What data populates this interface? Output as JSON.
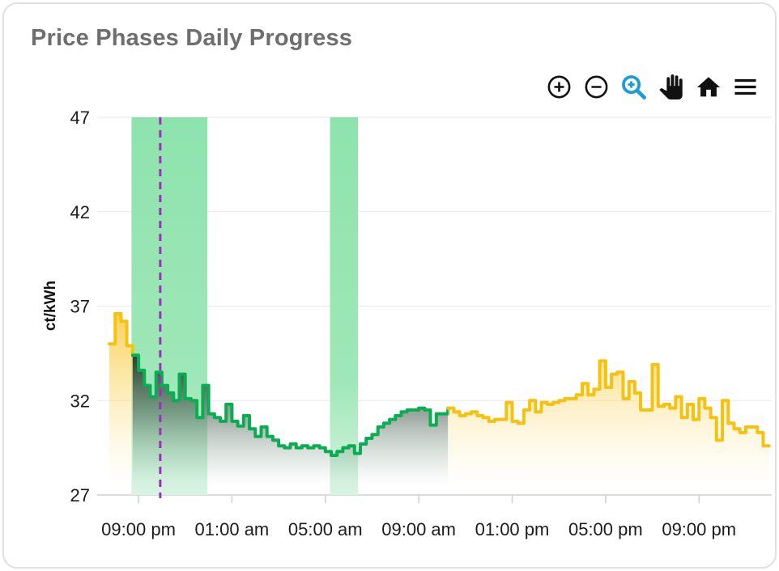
{
  "card": {
    "title": "Price Phases Daily Progress"
  },
  "toolbar": {
    "items": [
      {
        "name": "zoom-in",
        "label": "Zoom in"
      },
      {
        "name": "zoom-out",
        "label": "Zoom out"
      },
      {
        "name": "box-zoom",
        "label": "Box zoom",
        "active": true
      },
      {
        "name": "pan",
        "label": "Pan"
      },
      {
        "name": "reset-view",
        "label": "Reset view"
      },
      {
        "name": "menu",
        "label": "Menu"
      }
    ],
    "active_color": "#1A9DD9",
    "icon_color": "#111111"
  },
  "chart_data": {
    "type": "area",
    "title": "Price Phases Daily Progress",
    "xlabel": "",
    "ylabel": "ct/kWh",
    "ylim": [
      27,
      47
    ],
    "yticks": [
      47,
      42,
      37,
      32,
      27
    ],
    "grid": "horizontal",
    "legend": "none",
    "x_start_time": "19:45",
    "step_minutes": 15,
    "xticks": [
      {
        "h": 1.25,
        "label": "09:00 pm"
      },
      {
        "h": 5.25,
        "label": "01:00 am"
      },
      {
        "h": 9.25,
        "label": "05:00 am"
      },
      {
        "h": 13.25,
        "label": "09:00 am"
      },
      {
        "h": 17.25,
        "label": "01:00 pm"
      },
      {
        "h": 21.25,
        "label": "05:00 pm"
      },
      {
        "h": 25.25,
        "label": "09:00 pm"
      }
    ],
    "values": [
      35.0,
      36.6,
      36.2,
      34.9,
      34.4,
      33.6,
      32.8,
      32.2,
      33.5,
      32.8,
      32.4,
      32.0,
      33.4,
      32.1,
      32.0,
      31.1,
      32.8,
      31.3,
      31.1,
      30.9,
      31.8,
      30.9,
      30.65,
      31.2,
      30.5,
      30.1,
      30.6,
      30.1,
      29.9,
      29.6,
      29.5,
      29.7,
      29.5,
      29.6,
      29.5,
      29.6,
      29.5,
      29.3,
      29.1,
      29.3,
      29.5,
      29.6,
      29.2,
      29.7,
      30.0,
      30.2,
      30.6,
      30.8,
      31.0,
      31.2,
      31.4,
      31.5,
      31.5,
      31.6,
      31.5,
      30.7,
      31.3,
      31.3,
      31.6,
      31.4,
      31.2,
      31.3,
      31.4,
      31.2,
      31.1,
      30.9,
      31.0,
      31.0,
      31.9,
      30.9,
      30.8,
      31.5,
      32.0,
      31.4,
      31.9,
      31.8,
      31.9,
      32.0,
      32.1,
      32.1,
      32.3,
      32.9,
      32.3,
      32.6,
      34.1,
      32.7,
      33.4,
      33.5,
      32.1,
      33.0,
      32.4,
      31.5,
      31.5,
      33.9,
      31.7,
      31.8,
      31.6,
      32.2,
      31.1,
      31.8,
      31.0,
      32.1,
      31.6,
      31.1,
      29.9,
      32.0,
      30.8,
      30.5,
      30.3,
      30.6,
      30.6,
      30.3,
      29.6
    ],
    "phases": [
      {
        "phase": "high-price",
        "line_color": "#F5C211",
        "fill": "yellow",
        "from": 0,
        "to": 4
      },
      {
        "phase": "low-price",
        "line_color": "#0BAD52",
        "fill": "dark",
        "from": 4,
        "to": 58
      },
      {
        "phase": "high-price",
        "line_color": "#F5C211",
        "fill": "yellow",
        "from": 58,
        "to": 113
      }
    ],
    "cheap_windows": [
      {
        "from_h": 0.95,
        "to_h": 4.2
      },
      {
        "from_h": 9.45,
        "to_h": 10.65
      }
    ],
    "now_marker_h": 2.18,
    "colors": {
      "band": "#8FE3AD",
      "now_line": "#A12CC2",
      "yellow_line": "#F5C211",
      "green_line": "#0BAD52",
      "grid": "#ECECEC",
      "axis_line": "#D2D2D2",
      "tick_text": "#1C1C1C",
      "title_text": "#6E6E6E"
    }
  }
}
